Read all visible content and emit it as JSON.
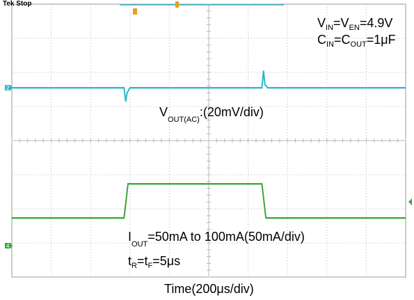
{
  "header": {
    "status": "Tek Stop"
  },
  "annotations": {
    "vin_prefix": "V",
    "vin_sub": "IN",
    "vin_eq": "=V",
    "ven_sub": "EN",
    "vin_value": "=4.9V",
    "cin_prefix": "C",
    "cin_sub": "IN",
    "cin_eq": "=C",
    "cout_sub": "OUT",
    "cin_value": "=1μF",
    "vout_prefix": "V",
    "vout_sub": "OUT(AC)",
    "vout_value": ":(20mV/div)",
    "iout_prefix": "I",
    "iout_sub": "OUT",
    "iout_value": "=50mA to 100mA(50mA/div)",
    "tr_prefix": "t",
    "tr_sub": "R",
    "tr_eq": "=t",
    "tf_sub": "F",
    "tr_value": "=5μs"
  },
  "colors": {
    "ch2": "#2fb7c9",
    "ch4": "#3aa83a",
    "grid": "#b8b8b8",
    "border": "#9a9a9a",
    "trigger": "#e6a020"
  },
  "markers": {
    "ch2": "2",
    "ch4": "4",
    "trigger": "T"
  },
  "chart_data": {
    "type": "line",
    "title": "",
    "xlabel": "Time(200μs/div)",
    "ylabel": "",
    "xlim": [
      0,
      2000
    ],
    "x_unit": "μs",
    "divisions": {
      "x": 10,
      "y": 8
    },
    "series": [
      {
        "name": "VOUT(AC)",
        "scale": "20mV/div",
        "color": "#2fb7c9",
        "x": [
          0,
          570,
          578,
          585,
          600,
          615,
          1270,
          1278,
          1285,
          1300,
          2000
        ],
        "y": [
          0,
          0,
          -8,
          -3,
          0,
          0,
          0,
          10,
          2,
          0,
          0
        ]
      },
      {
        "name": "IOUT",
        "scale": "50mA/div",
        "color": "#3aa83a",
        "x": [
          0,
          570,
          590,
          1270,
          1290,
          2000
        ],
        "y": [
          50,
          50,
          100,
          100,
          50,
          50
        ]
      }
    ]
  }
}
